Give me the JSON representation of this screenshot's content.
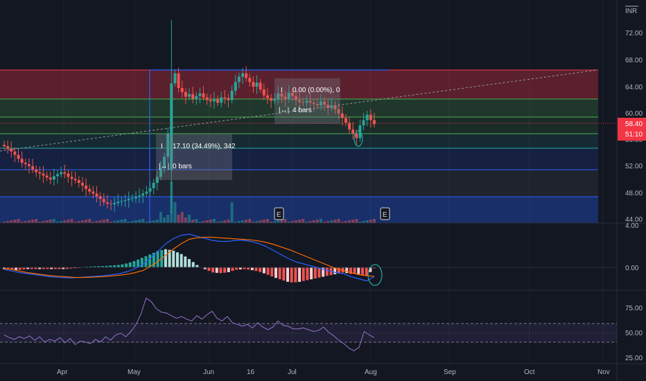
{
  "currency": "INR",
  "current_price": "58.40",
  "countdown": "51:10",
  "hidden_price_label": "56.00",
  "measure_big": {
    "line1": "17.10 (34.49%), 342",
    "line2": "0 bars"
  },
  "measure_small": {
    "line1": "0.00 (0.00%), 0",
    "line2": "4 bars"
  },
  "earnings_marker": "E",
  "price_axis": [
    "72.00",
    "68.00",
    "64.00",
    "60.00",
    "52.00",
    "48.00",
    "44.00"
  ],
  "macd_axis": [
    "4.00",
    "0.00"
  ],
  "rsi_axis": [
    "75.00",
    "50.00",
    "25.00"
  ],
  "time_axis": [
    "Apr",
    "May",
    "Jun",
    "16",
    "Jul",
    "Aug",
    "Sep",
    "Oct",
    "Nov"
  ],
  "colors": {
    "background": "#131722",
    "up": "#26a69a",
    "down": "#ef5350",
    "price_tag": "#f23645",
    "macd_line": "#2962ff",
    "signal_line": "#ff6d00",
    "rsi_line": "#7e57c2",
    "fib_top": "#f23645",
    "fib_green": "#4caf50",
    "fib_blue": "#2962ff"
  },
  "chart_data": [
    {
      "type": "candlestick",
      "name": "price",
      "x_range": [
        "Mar",
        "Nov"
      ],
      "ylim": [
        44,
        73
      ],
      "closes": [
        55.1,
        54.7,
        54.3,
        53.8,
        53.2,
        52.6,
        52.4,
        52.1,
        51.6,
        51.2,
        51.0,
        50.7,
        50.4,
        50.1,
        50.6,
        50.9,
        51.2,
        51.0,
        50.5,
        50.2,
        50.0,
        49.6,
        49.2,
        48.7,
        48.3,
        48.0,
        47.6,
        47.2,
        46.7,
        46.5,
        46.4,
        46.6,
        46.8,
        46.9,
        47.0,
        47.2,
        47.3,
        47.5,
        47.7,
        48.0,
        48.3,
        48.8,
        49.6,
        50.5,
        51.8,
        53.5,
        57.0,
        64.5,
        66.0,
        63.8,
        63.2,
        62.5,
        62.9,
        62.2,
        62.6,
        63.0,
        62.4,
        62.0,
        61.8,
        62.1,
        61.6,
        62.4,
        62.3,
        62.0,
        63.4,
        64.7,
        65.5,
        66.0,
        65.3,
        64.7,
        64.0,
        64.6,
        63.6,
        62.7,
        62.3,
        61.9,
        62.2,
        63.0,
        62.5,
        62.1,
        63.1,
        62.6,
        62.0,
        61.7,
        61.6,
        61.9,
        61.6,
        61.4,
        61.2,
        61.8,
        61.3,
        60.8,
        61.2,
        60.6,
        60.0,
        59.3,
        58.6,
        57.6,
        57.0,
        56.3,
        58.2,
        59.0,
        59.8,
        59.0,
        58.4
      ],
      "volume_unit": "relative"
    },
    {
      "type": "line",
      "name": "MACD",
      "ylim": [
        -3,
        4
      ],
      "series": [
        {
          "name": "MACD",
          "values": [
            -0.2,
            -0.35,
            -0.5,
            -0.6,
            -0.7,
            -0.8,
            -0.9,
            -0.95,
            -1.0,
            -1.0,
            -0.95,
            -0.9,
            -0.85,
            -0.8,
            -0.7,
            -0.6,
            -0.4,
            -0.1,
            0.3,
            0.9,
            1.6,
            2.3,
            2.8,
            3.1,
            3.2,
            3.0,
            2.8,
            2.6,
            2.5,
            2.5,
            2.6,
            2.6,
            2.5,
            2.3,
            2.0,
            1.6,
            1.2,
            0.8,
            0.5,
            0.3,
            0.1,
            -0.1,
            -0.3,
            -0.5,
            -0.6,
            -0.9,
            -1.1,
            -1.3,
            -0.9
          ]
        },
        {
          "name": "Signal",
          "values": [
            -0.1,
            -0.2,
            -0.35,
            -0.5,
            -0.6,
            -0.7,
            -0.8,
            -0.85,
            -0.9,
            -0.95,
            -0.97,
            -0.95,
            -0.92,
            -0.88,
            -0.82,
            -0.75,
            -0.65,
            -0.5,
            -0.3,
            0.1,
            0.6,
            1.2,
            1.8,
            2.3,
            2.7,
            2.85,
            2.9,
            2.9,
            2.85,
            2.8,
            2.75,
            2.7,
            2.65,
            2.55,
            2.4,
            2.2,
            1.95,
            1.7,
            1.4,
            1.1,
            0.8,
            0.5,
            0.2,
            -0.1,
            -0.3,
            -0.5,
            -0.7,
            -0.8,
            -0.85
          ]
        }
      ]
    },
    {
      "type": "line",
      "name": "RSI",
      "ylim": [
        20,
        95
      ],
      "series": [
        {
          "name": "RSI",
          "values": [
            48,
            45,
            43,
            46,
            44,
            47,
            42,
            46,
            40,
            43,
            41,
            45,
            39,
            44,
            37,
            41,
            40,
            38,
            43,
            40,
            46,
            42,
            48,
            50,
            46,
            52,
            60,
            72,
            90,
            86,
            78,
            74,
            73,
            70,
            67,
            69,
            66,
            64,
            70,
            66,
            71,
            75,
            67,
            64,
            69,
            62,
            60,
            58,
            60,
            56,
            62,
            57,
            54,
            57,
            64,
            59,
            58,
            55,
            55,
            56,
            54,
            52,
            53,
            57,
            51,
            47,
            42,
            38,
            33,
            30,
            34,
            52,
            48,
            45
          ]
        }
      ]
    }
  ]
}
